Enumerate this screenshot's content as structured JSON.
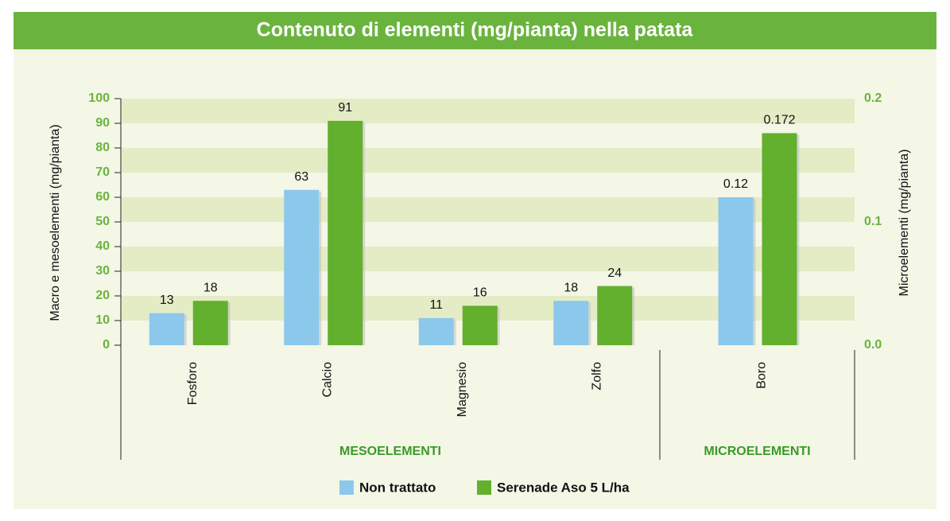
{
  "chart_data": {
    "type": "bar",
    "title": "Contenuto di elementi (mg/pianta) nella patata",
    "y_label": "Macro e mesoelementi (mg/pianta)",
    "y2_label": "Microelementi (mg/pianta)",
    "categories": [
      "Fosforo",
      "Calcio",
      "Magnesio",
      "Zolfo",
      "Boro"
    ],
    "axis_by_category": [
      "y",
      "y",
      "y",
      "y",
      "y2"
    ],
    "groups": [
      {
        "label": "MESOELEMENTI",
        "span": 4
      },
      {
        "label": "MICROELEMENTI",
        "span": 1
      }
    ],
    "series": [
      {
        "name": "Non trattato",
        "color": "#8cc8ec",
        "values": [
          13,
          63,
          11,
          18,
          0.12
        ]
      },
      {
        "name": "Serenade Aso 5 L/ha",
        "color": "#62b02e",
        "values": [
          18,
          91,
          16,
          24,
          0.172
        ]
      }
    ],
    "ylim": [
      0,
      100
    ],
    "yticks": [
      0,
      10,
      20,
      30,
      40,
      50,
      60,
      70,
      80,
      90,
      100
    ],
    "y2lim": [
      0,
      0.2
    ],
    "y2ticks": [
      {
        "value": 0,
        "label": "0.0"
      },
      0.1,
      0.2
    ],
    "grid": true
  }
}
